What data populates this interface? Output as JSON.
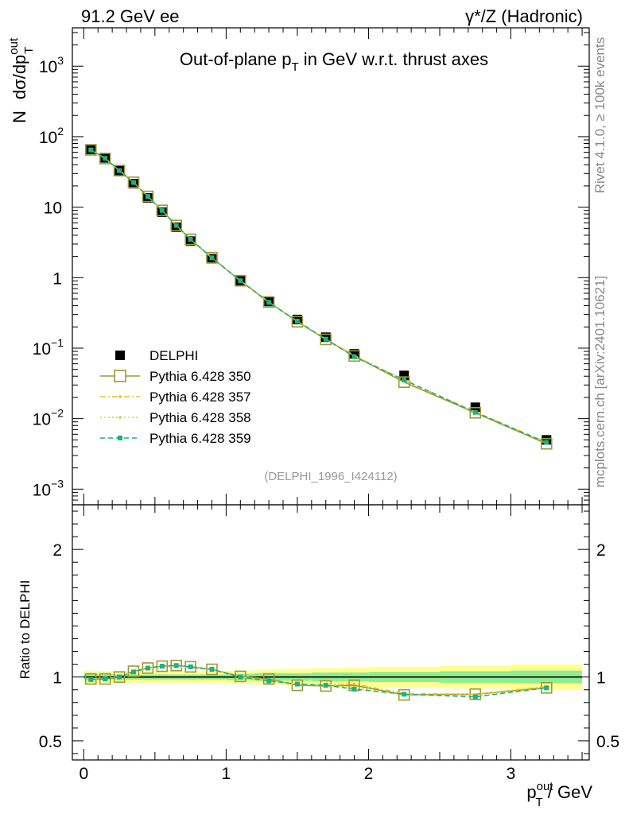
{
  "header": {
    "left": "91.2 GeV ee",
    "right": "γ*/Z (Hadronic)"
  },
  "side_labels": {
    "rivet": "Rivet 4.1.0, ≥ 100k events",
    "mcplots": "mcplots.cern.ch [arXiv:2401.10621]"
  },
  "chart_data": [
    {
      "type": "scatter",
      "panel": "main",
      "title": "Out-of-plane pT in GeV w.r.t. thrust axes",
      "title_parts": {
        "pre": "Out-of-plane p",
        "sub": "T",
        "post": " in GeV w.r.t. thrust axes"
      },
      "ylabel": "N  dσ/dp_T^out",
      "ylabel_parts": {
        "n": "N",
        "main": "dσ/dp",
        "sup": "out",
        "sub": "T"
      },
      "yscale": "log",
      "ylim": [
        0.0006,
        3500
      ],
      "xlim": [
        -0.08,
        3.55
      ],
      "ytick_labels": [
        {
          "value": 0.001,
          "base": "10",
          "exp": "−3"
        },
        {
          "value": 0.01,
          "base": "10",
          "exp": "−2"
        },
        {
          "value": 0.1,
          "base": "10",
          "exp": "−1"
        },
        {
          "value": 1,
          "base": "1",
          "exp": ""
        },
        {
          "value": 10,
          "base": "10",
          "exp": ""
        },
        {
          "value": 100,
          "base": "10",
          "exp": "2"
        },
        {
          "value": 1000,
          "base": "10",
          "exp": "3"
        }
      ],
      "watermark": "(DELPHI_1996_I424112)",
      "x": [
        0.05,
        0.15,
        0.25,
        0.35,
        0.45,
        0.55,
        0.65,
        0.75,
        0.9,
        1.1,
        1.3,
        1.5,
        1.7,
        1.9,
        2.25,
        2.75,
        3.25
      ],
      "series": [
        {
          "name": "DELPHI",
          "color": "#000000",
          "style": "data",
          "values": [
            66,
            50,
            33,
            21.5,
            13.5,
            8.5,
            5.2,
            3.3,
            1.85,
            0.9,
            0.46,
            0.255,
            0.143,
            0.083,
            0.041,
            0.0145,
            0.005
          ]
        },
        {
          "name": "Pythia 6.428 350",
          "color": "#9a9a3a",
          "style": "solid-open-square",
          "values": [
            65,
            49,
            33,
            22.5,
            14.2,
            9.0,
            5.5,
            3.5,
            1.92,
            0.905,
            0.452,
            0.237,
            0.133,
            0.0775,
            0.033,
            0.0121,
            0.0044
          ]
        },
        {
          "name": "Pythia 6.428 357",
          "color": "#e8c020",
          "style": "dashdot",
          "values": [
            64.5,
            49.2,
            33,
            22.4,
            14.1,
            8.95,
            5.5,
            3.5,
            1.91,
            0.9,
            0.448,
            0.24,
            0.133,
            0.079,
            0.035,
            0.0125,
            0.0046
          ]
        },
        {
          "name": "Pythia 6.428 358",
          "color": "#d8d030",
          "style": "dotted",
          "values": [
            64.8,
            49,
            33.1,
            22.3,
            14.1,
            8.9,
            5.45,
            3.48,
            1.9,
            0.9,
            0.446,
            0.242,
            0.134,
            0.078,
            0.0345,
            0.0124,
            0.0045
          ]
        },
        {
          "name": "Pythia 6.428 359",
          "color": "#20b080",
          "style": "dashed-filled-square",
          "values": [
            64.7,
            49.3,
            33,
            22.4,
            14.2,
            9.0,
            5.5,
            3.5,
            1.91,
            0.905,
            0.446,
            0.242,
            0.134,
            0.0755,
            0.0355,
            0.0123,
            0.0046
          ]
        }
      ]
    },
    {
      "type": "line",
      "panel": "ratio",
      "ylabel": "Ratio to DELPHI",
      "xlabel_parts": {
        "p": "p",
        "sup": "out",
        "sub": "T",
        "post": " / GeV"
      },
      "ylim": [
        0.35,
        2.35
      ],
      "yticks": [
        0.5,
        1,
        2
      ],
      "ytick_labels": [
        "0.5",
        "1",
        "2"
      ],
      "xticks": [
        0,
        1,
        2,
        3
      ],
      "xtick_labels": [
        "0",
        "1",
        "2",
        "3"
      ],
      "x": [
        0.05,
        0.15,
        0.25,
        0.35,
        0.45,
        0.55,
        0.65,
        0.75,
        0.9,
        1.1,
        1.3,
        1.5,
        1.7,
        1.9,
        2.25,
        2.75,
        3.25
      ],
      "band_edges": [
        0.0,
        0.1,
        0.2,
        0.3,
        0.4,
        0.5,
        0.6,
        0.7,
        0.8,
        1.0,
        1.2,
        1.4,
        1.6,
        1.8,
        2.0,
        2.5,
        3.0,
        3.5
      ],
      "band_green": [
        0.025,
        0.02,
        0.02,
        0.02,
        0.02,
        0.02,
        0.02,
        0.02,
        0.02,
        0.025,
        0.03,
        0.03,
        0.035,
        0.035,
        0.04,
        0.045,
        0.05
      ],
      "band_yellow": [
        0.05,
        0.045,
        0.045,
        0.045,
        0.045,
        0.045,
        0.045,
        0.045,
        0.045,
        0.05,
        0.06,
        0.065,
        0.07,
        0.075,
        0.08,
        0.09,
        0.1
      ],
      "series": [
        {
          "name": "Pythia 6.428 350",
          "color": "#9a9a3a",
          "style": "solid-open-square",
          "values": [
            0.985,
            0.985,
            1.0,
            1.045,
            1.07,
            1.085,
            1.09,
            1.08,
            1.06,
            1.005,
            0.985,
            0.935,
            0.93,
            0.935,
            0.86,
            0.865,
            0.915
          ]
        },
        {
          "name": "Pythia 6.428 357",
          "color": "#e8c020",
          "style": "dashdot",
          "values": [
            0.98,
            0.99,
            1.0,
            1.04,
            1.07,
            1.08,
            1.085,
            1.075,
            1.06,
            1.0,
            0.975,
            0.94,
            0.935,
            0.945,
            0.87,
            0.865,
            0.925
          ]
        },
        {
          "name": "Pythia 6.428 358",
          "color": "#d8d030",
          "style": "dotted",
          "values": [
            0.98,
            0.985,
            1.0,
            1.04,
            1.065,
            1.08,
            1.085,
            1.075,
            1.055,
            1.0,
            0.97,
            0.945,
            0.935,
            0.92,
            0.86,
            0.855,
            0.915
          ]
        },
        {
          "name": "Pythia 6.428 359",
          "color": "#20b080",
          "style": "dashed-filled-square",
          "values": [
            0.98,
            0.985,
            1.0,
            1.04,
            1.07,
            1.085,
            1.09,
            1.08,
            1.06,
            1.0,
            0.97,
            0.945,
            0.935,
            0.905,
            0.865,
            0.845,
            0.915
          ]
        }
      ]
    }
  ]
}
